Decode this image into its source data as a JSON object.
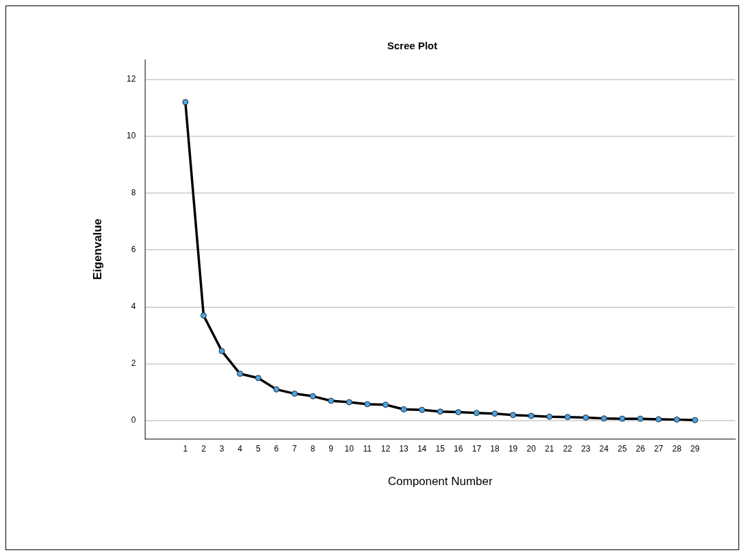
{
  "chart_data": {
    "type": "line",
    "title": "Scree Plot",
    "xlabel": "Component Number",
    "ylabel": "Eigenvalue",
    "x": [
      1,
      2,
      3,
      4,
      5,
      6,
      7,
      8,
      9,
      10,
      11,
      12,
      13,
      14,
      15,
      16,
      17,
      18,
      19,
      20,
      21,
      22,
      23,
      24,
      25,
      26,
      27,
      28,
      29
    ],
    "series": [
      {
        "color": "#000000",
        "values": [
          11.2,
          3.7,
          2.45,
          1.65,
          1.5,
          1.1,
          0.95,
          0.86,
          0.7,
          0.65,
          0.58,
          0.56,
          0.4,
          0.38,
          0.32,
          0.3,
          0.27,
          0.25,
          0.2,
          0.17,
          0.14,
          0.13,
          0.11,
          0.08,
          0.07,
          0.07,
          0.05,
          0.04,
          0.02
        ]
      }
    ],
    "xlim": [
      -1.2,
      31.2
    ],
    "xticks": [
      1,
      2,
      3,
      4,
      5,
      6,
      7,
      8,
      9,
      10,
      11,
      12,
      13,
      14,
      15,
      16,
      17,
      18,
      19,
      20,
      21,
      22,
      23,
      24,
      25,
      26,
      27,
      28,
      29
    ],
    "ylim": [
      -0.64,
      12.7
    ],
    "yticks": [
      0,
      2,
      4,
      6,
      8,
      10,
      12
    ],
    "grid": "y",
    "legend": false,
    "marker": "circle",
    "line_style": "solid"
  }
}
